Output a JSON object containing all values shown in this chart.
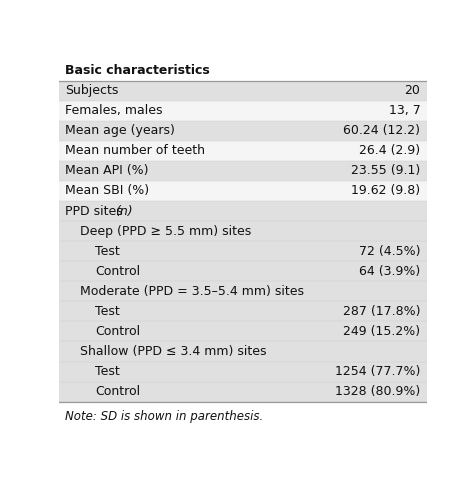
{
  "title_partial": "Basic characteristics",
  "rows": [
    {
      "label": "Subjects",
      "value": "20",
      "indent": 0,
      "shaded": true
    },
    {
      "label": "Females, males",
      "value": "13, 7",
      "indent": 0,
      "shaded": false
    },
    {
      "label": "Mean age (years)",
      "value": "60.24 (12.2)",
      "indent": 0,
      "shaded": true
    },
    {
      "label": "Mean number of teeth",
      "value": "26.4 (2.9)",
      "indent": 0,
      "shaded": false
    },
    {
      "label": "Mean API (%)",
      "value": "23.55 (9.1)",
      "indent": 0,
      "shaded": true
    },
    {
      "label": "Mean SBI (%)",
      "value": "19.62 (9.8)",
      "indent": 0,
      "shaded": false
    },
    {
      "label": "PPD sites (n)",
      "value": "",
      "indent": 0,
      "shaded": false,
      "italic_n": true
    },
    {
      "label": "Deep (PPD ≥ 5.5 mm) sites",
      "value": "",
      "indent": 1,
      "shaded": false
    },
    {
      "label": "Test",
      "value": "72 (4.5%)",
      "indent": 2,
      "shaded": false
    },
    {
      "label": "Control",
      "value": "64 (3.9%)",
      "indent": 2,
      "shaded": false
    },
    {
      "label": "Moderate (PPD = 3.5–5.4 mm) sites",
      "value": "",
      "indent": 1,
      "shaded": false
    },
    {
      "label": "Test",
      "value": "287 (17.8%)",
      "indent": 2,
      "shaded": false
    },
    {
      "label": "Control",
      "value": "249 (15.2%)",
      "indent": 2,
      "shaded": false
    },
    {
      "label": "Shallow (PPD ≤ 3.4 mm) sites",
      "value": "",
      "indent": 1,
      "shaded": false
    },
    {
      "label": "Test",
      "value": "1254 (77.7%)",
      "indent": 2,
      "shaded": false
    },
    {
      "label": "Control",
      "value": "1328 (80.9%)",
      "indent": 2,
      "shaded": false
    }
  ],
  "note": "Note: SD is shown in parenthesis.",
  "shaded_color": "#e0e0e0",
  "white_color": "#f5f5f5",
  "text_color": "#111111",
  "font_size": 9.0,
  "note_font_size": 8.5,
  "indent_unit": 0.04
}
